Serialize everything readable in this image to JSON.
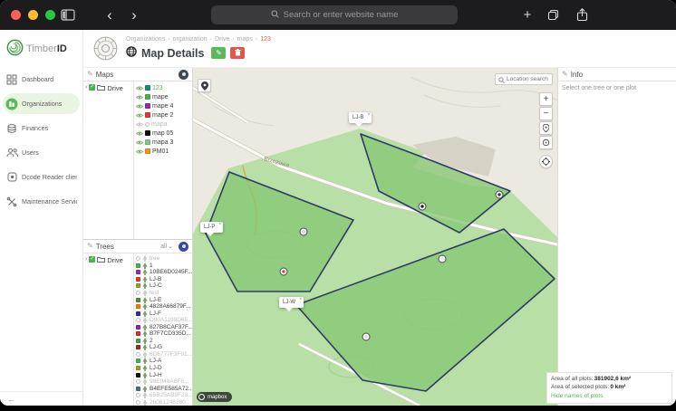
{
  "browser": {
    "search_placeholder": "Search or enter website name"
  },
  "brand": {
    "name_light": "Timber",
    "name_bold": "ID"
  },
  "sidebar": {
    "items": [
      {
        "label": "Dashboard",
        "icon": "dashboard-icon",
        "active": false
      },
      {
        "label": "Organizations",
        "icon": "organizations-icon",
        "active": true
      },
      {
        "label": "Finances",
        "icon": "finances-icon",
        "active": false
      },
      {
        "label": "Users",
        "icon": "users-icon",
        "active": false
      },
      {
        "label": "Dcode Reader clients",
        "icon": "dcode-reader-icon",
        "active": false
      },
      {
        "label": "Maintenance Services",
        "icon": "maintenance-icon",
        "active": false
      }
    ],
    "collapse_arrow": "←"
  },
  "header": {
    "breadcrumb": [
      "Organizations",
      "organization",
      "Drive",
      "maps",
      "123"
    ],
    "title": "Map Details"
  },
  "maps_panel": {
    "title": "Maps",
    "root": "Drive",
    "items": [
      {
        "label": "123",
        "color": "#1d8a7e",
        "selected": true
      },
      {
        "label": "mape",
        "color": "#4caf50"
      },
      {
        "label": "mape 4",
        "color": "#9c27b0"
      },
      {
        "label": "mape 2",
        "color": "#e53935"
      },
      {
        "label": "mapa",
        "disabled": true
      },
      {
        "label": "map 05",
        "color": "#111111"
      },
      {
        "label": "mapa 3",
        "color": "#81c784"
      },
      {
        "label": "PM01",
        "color": "#f59123"
      }
    ]
  },
  "trees_panel": {
    "title": "Trees",
    "filter_label": "all",
    "root": "Drive",
    "items": [
      {
        "label": "tree",
        "disabled": true
      },
      {
        "label": "1",
        "color": "#4caf50"
      },
      {
        "label": "10BE6D0245F...",
        "color": "#9c27b0"
      },
      {
        "label": "LJ-B",
        "color": "#e53935"
      },
      {
        "label": "LJ-C",
        "color": "#9e9d24"
      },
      {
        "label": "test",
        "disabled": true
      },
      {
        "label": "LJ-E",
        "color": "#558b2f"
      },
      {
        "label": "4828A66879F...",
        "color": "#f57c00"
      },
      {
        "label": "LJ-F",
        "color": "#283593"
      },
      {
        "label": "D90A1199D65...",
        "disabled": true
      },
      {
        "label": "827B8CAF37F...",
        "color": "#8e24aa"
      },
      {
        "label": "B7F7CD335D...",
        "color": "#d32f2f"
      },
      {
        "label": "2",
        "color": "#43a047"
      },
      {
        "label": "LJ-G",
        "color": "#b71c1c"
      },
      {
        "label": "6D6777F3F91...",
        "disabled": true
      },
      {
        "label": "LJ-A",
        "color": "#4caf50"
      },
      {
        "label": "LJ-D",
        "color": "#9e9d24"
      },
      {
        "label": "LJ-H",
        "color": "#111111"
      },
      {
        "label": "99E048A8F8...",
        "disabled": true
      },
      {
        "label": "B4EFE585A72...",
        "color": "#546e7a"
      },
      {
        "label": "65B25AB9F23...",
        "disabled": true
      },
      {
        "label": "26081248280...",
        "disabled": true
      }
    ]
  },
  "map": {
    "search_placeholder": "Location search",
    "road_label": "Brzozowa",
    "popups": [
      {
        "label": "LJ-B"
      },
      {
        "label": "LJ-P"
      },
      {
        "label": "LJ-W"
      }
    ],
    "attribution": "mapbox",
    "area": {
      "all_label": "Area of all plots:",
      "all_value": "381902,6 km²",
      "selected_label": "Area of selected plots:",
      "selected_value": "0 km²",
      "hide_link": "Hide names of plots"
    }
  },
  "info_panel": {
    "title": "Info",
    "body": "Select one tree or one plot"
  },
  "colors": {
    "accent_green": "#5bb85d",
    "danger_red": "#e2574c",
    "plot_fill": "#86c873",
    "plot_border": "#2f3b66",
    "traffic_lights": [
      "#ff5f57",
      "#febc2e",
      "#28c840"
    ]
  }
}
